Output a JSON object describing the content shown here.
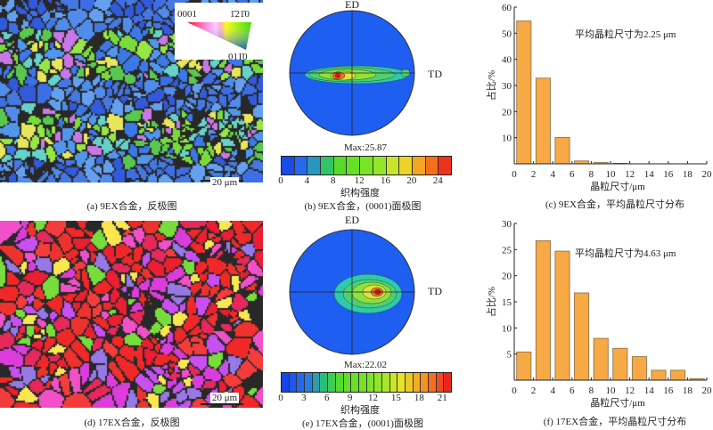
{
  "panels": {
    "a": {
      "caption": "(a) 9EX合金，反极图",
      "scale_bar": "20 μm",
      "ipf_legend": {
        "corner_0001": "0001",
        "corner_1210": "1̄21̄0",
        "corner_0110": "011̄0"
      }
    },
    "b": {
      "caption": "(b) 9EX合金，(0001)面极图",
      "ed": "ED",
      "td": "TD",
      "max_label": "Max:25.87",
      "colorbar_label": "织构强度",
      "colorbar_ticks": [
        "0",
        "4",
        "8",
        "12",
        "16",
        "20",
        "24"
      ],
      "colorbar_max": 25.87
    },
    "d": {
      "caption": "(d) 17EX合金，反极图",
      "scale_bar": "20 μm"
    },
    "e": {
      "caption": "(e) 17EX合金，(0001)面极图",
      "ed": "ED",
      "td": "TD",
      "max_label": "Max:22.02",
      "colorbar_label": "织构强度",
      "colorbar_ticks": [
        "0",
        "3",
        "6",
        "9",
        "12",
        "15",
        "18",
        "21"
      ],
      "colorbar_max": 22.02
    }
  },
  "chart_data": [
    {
      "type": "bar",
      "id": "c",
      "caption": "(c) 9EX合金，平均晶粒尺寸分布",
      "annotation": "平均晶粒尺寸为2.25 μm",
      "xlabel": "晶粒尺寸/μm",
      "ylabel": "占比/%",
      "bin_centers": [
        1,
        3,
        5,
        7,
        9,
        11,
        13,
        15,
        17,
        19
      ],
      "values": [
        54.7,
        32.8,
        10.1,
        1.1,
        0.5,
        0.2,
        0,
        0,
        0,
        0
      ],
      "xlim": [
        0,
        20
      ],
      "ylim": [
        0,
        60
      ],
      "xticks": [
        "0",
        "2",
        "4",
        "6",
        "8",
        "10",
        "12",
        "14",
        "16",
        "18",
        "20"
      ],
      "yticks": [
        "10",
        "20",
        "30",
        "40",
        "50",
        "60"
      ],
      "color": "#f6a945"
    },
    {
      "type": "bar",
      "id": "f",
      "caption": "(f) 17EX合金，平均晶粒尺寸分布",
      "annotation": "平均晶粒尺寸为4.63 μm",
      "xlabel": "晶粒尺寸/μm",
      "ylabel": "占比/%",
      "bin_centers": [
        1,
        3,
        5,
        7,
        9,
        11,
        13,
        15,
        17,
        19
      ],
      "values": [
        5.4,
        26.7,
        24.7,
        16.7,
        8.0,
        6.1,
        4.5,
        1.9,
        1.9,
        0.3
      ],
      "xlim": [
        0,
        20
      ],
      "ylim": [
        0,
        30
      ],
      "xticks": [
        "0",
        "2",
        "4",
        "6",
        "8",
        "10",
        "12",
        "14",
        "16",
        "18",
        "20"
      ],
      "yticks": [
        "5",
        "10",
        "15",
        "20",
        "25",
        "30"
      ],
      "color": "#f6a945"
    }
  ]
}
